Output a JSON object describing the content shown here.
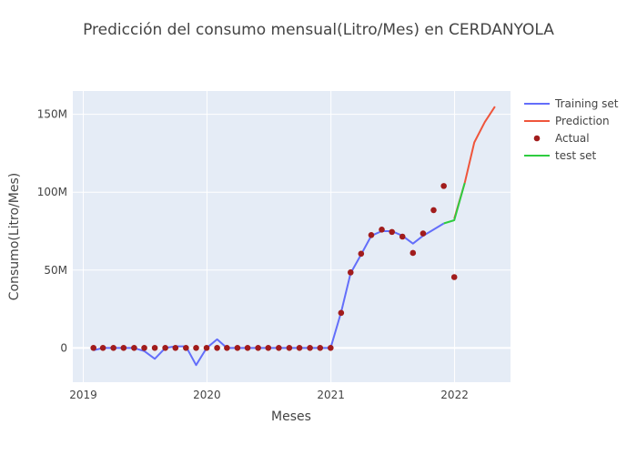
{
  "chart_data": {
    "type": "line",
    "title": "Predicción del consumo mensual(Litro/Mes) en CERDANYOLA",
    "xlabel": "Meses",
    "ylabel": "Consumo(Litro/Mes)",
    "x_range": [
      "2018-12-01",
      "2022-06-15"
    ],
    "ylim": [
      -22000000,
      165000000
    ],
    "x_ticks": [
      {
        "date": "2019-01-01",
        "label": "2019"
      },
      {
        "date": "2020-01-01",
        "label": "2020"
      },
      {
        "date": "2021-01-01",
        "label": "2021"
      },
      {
        "date": "2022-01-01",
        "label": "2022"
      }
    ],
    "y_ticks": [
      {
        "value": 0,
        "label": "0"
      },
      {
        "value": 50000000,
        "label": "50M"
      },
      {
        "value": 100000000,
        "label": "100M"
      },
      {
        "value": 150000000,
        "label": "150M"
      }
    ],
    "grid": true,
    "legend_position": "top-right",
    "series": [
      {
        "name": "Training set",
        "kind": "line",
        "color": "#636efa",
        "x": [
          "2019-01-31",
          "2019-02-28",
          "2019-03-31",
          "2019-04-30",
          "2019-05-31",
          "2019-06-30",
          "2019-07-31",
          "2019-08-31",
          "2019-09-30",
          "2019-10-31",
          "2019-11-30",
          "2019-12-31",
          "2020-01-31",
          "2020-02-29",
          "2020-03-31",
          "2020-04-30",
          "2020-05-31",
          "2020-06-30",
          "2020-07-31",
          "2020-08-31",
          "2020-09-30",
          "2020-10-31",
          "2020-11-30",
          "2020-12-31",
          "2021-01-31",
          "2021-02-28",
          "2021-03-31",
          "2021-04-30",
          "2021-05-31",
          "2021-06-30",
          "2021-07-31",
          "2021-08-31",
          "2021-09-30",
          "2021-10-31",
          "2021-11-30"
        ],
        "y": [
          -1500000,
          0,
          0,
          0,
          0,
          -2000000,
          -7000000,
          0,
          1000000,
          1000000,
          -11000000,
          0,
          5500000,
          0,
          0,
          0,
          0,
          0,
          0,
          0,
          0,
          0,
          0,
          0,
          23000000,
          48000000,
          60000000,
          72000000,
          75000000,
          75000000,
          72000000,
          67000000,
          72000000,
          76000000,
          80000000
        ]
      },
      {
        "name": "Prediction",
        "kind": "line",
        "color": "#ef553b",
        "x": [
          "2021-12-31",
          "2022-01-31",
          "2022-02-28",
          "2022-03-31",
          "2022-04-30"
        ],
        "y": [
          83000000,
          106000000,
          132000000,
          145000000,
          155000000
        ]
      },
      {
        "name": "Actual",
        "kind": "markers",
        "color": "#a11c1c",
        "x": [
          "2019-01-31",
          "2019-02-28",
          "2019-03-31",
          "2019-04-30",
          "2019-05-31",
          "2019-06-30",
          "2019-07-31",
          "2019-08-31",
          "2019-09-30",
          "2019-10-31",
          "2019-11-30",
          "2019-12-31",
          "2020-01-31",
          "2020-02-29",
          "2020-03-31",
          "2020-04-30",
          "2020-05-31",
          "2020-06-30",
          "2020-07-31",
          "2020-08-31",
          "2020-09-30",
          "2020-10-31",
          "2020-11-30",
          "2020-12-31",
          "2021-01-31",
          "2021-02-28",
          "2021-03-31",
          "2021-04-30",
          "2021-05-31",
          "2021-06-30",
          "2021-07-31",
          "2021-08-31",
          "2021-09-30",
          "2021-10-31",
          "2021-11-30",
          "2021-12-31"
        ],
        "y": [
          0,
          0,
          0,
          0,
          0,
          0,
          0,
          0,
          0,
          0,
          0,
          0,
          0,
          0,
          0,
          0,
          0,
          0,
          0,
          0,
          0,
          0,
          0,
          0,
          22500000,
          48500000,
          60500000,
          72500000,
          76000000,
          74500000,
          71500000,
          61000000,
          73500000,
          88500000,
          104000000,
          45500000
        ]
      },
      {
        "name": "test set",
        "kind": "line",
        "color": "#2ecc40",
        "x": [
          "2021-11-30",
          "2021-12-31",
          "2022-01-31"
        ],
        "y": [
          80000000,
          82000000,
          106000000
        ]
      }
    ]
  }
}
